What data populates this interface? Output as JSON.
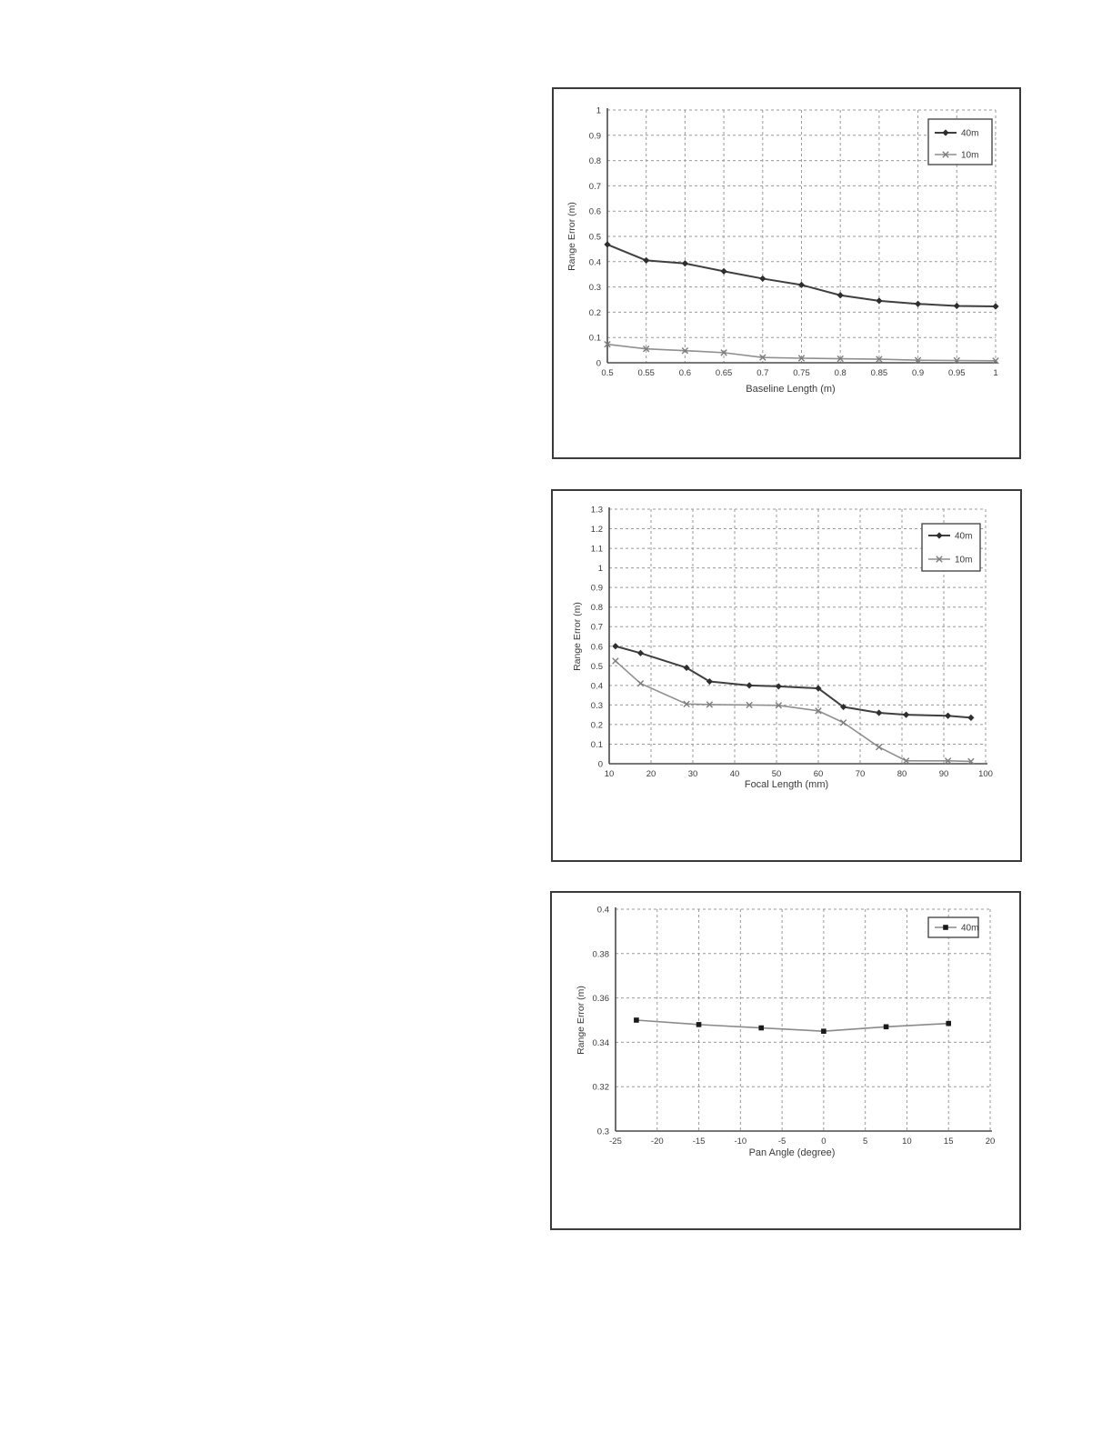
{
  "page": {
    "background": "#ffffff",
    "description_colors": {
      "frame_border": "#3a3a3a",
      "grid": "#9a9a9a",
      "axis": "#4a4a4a",
      "text": "#3a3a3a",
      "series_dark": "#3f3f3f",
      "series_light": "#8f8f8f"
    }
  },
  "figures": [
    {
      "name": "range-error-vs-baseline-length"
    },
    {
      "name": "range-error-vs-focal-length"
    },
    {
      "name": "range-error-vs-pan-angle"
    }
  ],
  "chart_data": [
    {
      "type": "line",
      "title": "",
      "xlabel": "Baseline Length (m)",
      "ylabel": "Range Error (m)",
      "xlim": [
        0.5,
        1
      ],
      "ylim": [
        0,
        1
      ],
      "grid": "dashed-both",
      "legend_position": "top-right",
      "x_ticks": [
        0.5,
        0.55,
        0.6,
        0.65,
        0.7,
        0.75,
        0.8,
        0.85,
        0.9,
        0.95,
        1
      ],
      "x_tick_labels": [
        "0.5",
        "0.55",
        "0.6",
        "0.65",
        "0.7",
        "0.75",
        "0.8",
        "0.85",
        "0.9",
        "0.95",
        "1"
      ],
      "y_ticks": [
        0,
        0.1,
        0.2,
        0.3,
        0.4,
        0.5,
        0.6,
        0.7,
        0.8,
        0.9,
        1
      ],
      "y_tick_labels": [
        "0",
        "0.1",
        "0.2",
        "0.3",
        "0.4",
        "0.5",
        "0.6",
        "0.7",
        "0.8",
        "0.9",
        "1"
      ],
      "series": [
        {
          "name": "40m",
          "marker": "diamond",
          "color": "#3f3f3f",
          "marker_color": "#2e2e2e",
          "width": 2,
          "x": [
            0.5,
            0.55,
            0.6,
            0.65,
            0.7,
            0.75,
            0.8,
            0.85,
            0.9,
            0.95,
            1
          ],
          "y": [
            0.468,
            0.405,
            0.393,
            0.362,
            0.333,
            0.308,
            0.267,
            0.245,
            0.233,
            0.225,
            0.223
          ]
        },
        {
          "name": "10m",
          "marker": "x",
          "color": "#8f8f8f",
          "marker_color": "#7d7d7d",
          "width": 1.6,
          "x": [
            0.5,
            0.55,
            0.6,
            0.65,
            0.7,
            0.75,
            0.8,
            0.85,
            0.9,
            0.95,
            1
          ],
          "y": [
            0.073,
            0.055,
            0.048,
            0.04,
            0.021,
            0.018,
            0.016,
            0.014,
            0.01,
            0.009,
            0.008
          ]
        }
      ]
    },
    {
      "type": "line",
      "title": "",
      "xlabel": "Focal Length (mm)",
      "ylabel": "Range Error (m)",
      "xlim": [
        10,
        100
      ],
      "ylim": [
        0,
        1.3
      ],
      "grid": "dashed-both",
      "legend_position": "top-right",
      "x_ticks": [
        10,
        20,
        30,
        40,
        50,
        60,
        70,
        80,
        90,
        100
      ],
      "x_tick_labels": [
        "10",
        "20",
        "30",
        "40",
        "50",
        "60",
        "70",
        "80",
        "90",
        "100"
      ],
      "y_ticks": [
        0,
        0.1,
        0.2,
        0.3,
        0.4,
        0.5,
        0.6,
        0.7,
        0.8,
        0.9,
        1,
        1.1,
        1.2,
        1.3
      ],
      "y_tick_labels": [
        "0",
        "0.1",
        "0.2",
        "0.3",
        "0.4",
        "0.5",
        "0.6",
        "0.7",
        "0.8",
        "0.9",
        "1",
        "1.1",
        "1.2",
        "1.3"
      ],
      "series": [
        {
          "name": "40m",
          "marker": "diamond",
          "color": "#3f3f3f",
          "marker_color": "#2e2e2e",
          "width": 2,
          "x": [
            11.5,
            17.5,
            28.5,
            34,
            43.5,
            50.5,
            60,
            66,
            74.5,
            81,
            91,
            96.5
          ],
          "y": [
            0.6,
            0.565,
            0.49,
            0.42,
            0.4,
            0.395,
            0.385,
            0.29,
            0.26,
            0.25,
            0.245,
            0.235
          ]
        },
        {
          "name": "10m",
          "marker": "x",
          "color": "#8f8f8f",
          "marker_color": "#7d7d7d",
          "width": 1.6,
          "x": [
            11.5,
            17.5,
            28.5,
            34,
            43.5,
            50.5,
            60,
            66,
            74.5,
            81,
            91,
            96.5
          ],
          "y": [
            0.525,
            0.41,
            0.305,
            0.302,
            0.3,
            0.298,
            0.27,
            0.21,
            0.085,
            0.015,
            0.015,
            0.012
          ]
        }
      ]
    },
    {
      "type": "line",
      "title": "",
      "xlabel": "Pan Angle (degree)",
      "ylabel": "Range Error (m)",
      "xlim": [
        -25,
        20
      ],
      "ylim": [
        0.3,
        0.4
      ],
      "grid": "dashed-both",
      "legend_position": "top-right",
      "x_ticks": [
        -25,
        -20,
        -15,
        -10,
        -5,
        0,
        5,
        10,
        15,
        20
      ],
      "x_tick_labels": [
        "-25",
        "-20",
        "-15",
        "-10",
        "-5",
        "0",
        "5",
        "10",
        "15",
        "20"
      ],
      "y_ticks": [
        0.3,
        0.32,
        0.34,
        0.36,
        0.38,
        0.4
      ],
      "y_tick_labels": [
        "0.3",
        "0.32",
        "0.34",
        "0.36",
        "0.38",
        "0.4"
      ],
      "series": [
        {
          "name": "40m",
          "marker": "square",
          "color": "#8a8a8a",
          "marker_color": "#1a1a1a",
          "width": 1.6,
          "x": [
            -22.5,
            -15,
            -7.5,
            0,
            7.5,
            15
          ],
          "y": [
            0.35,
            0.348,
            0.3465,
            0.345,
            0.347,
            0.3485
          ]
        }
      ]
    }
  ]
}
